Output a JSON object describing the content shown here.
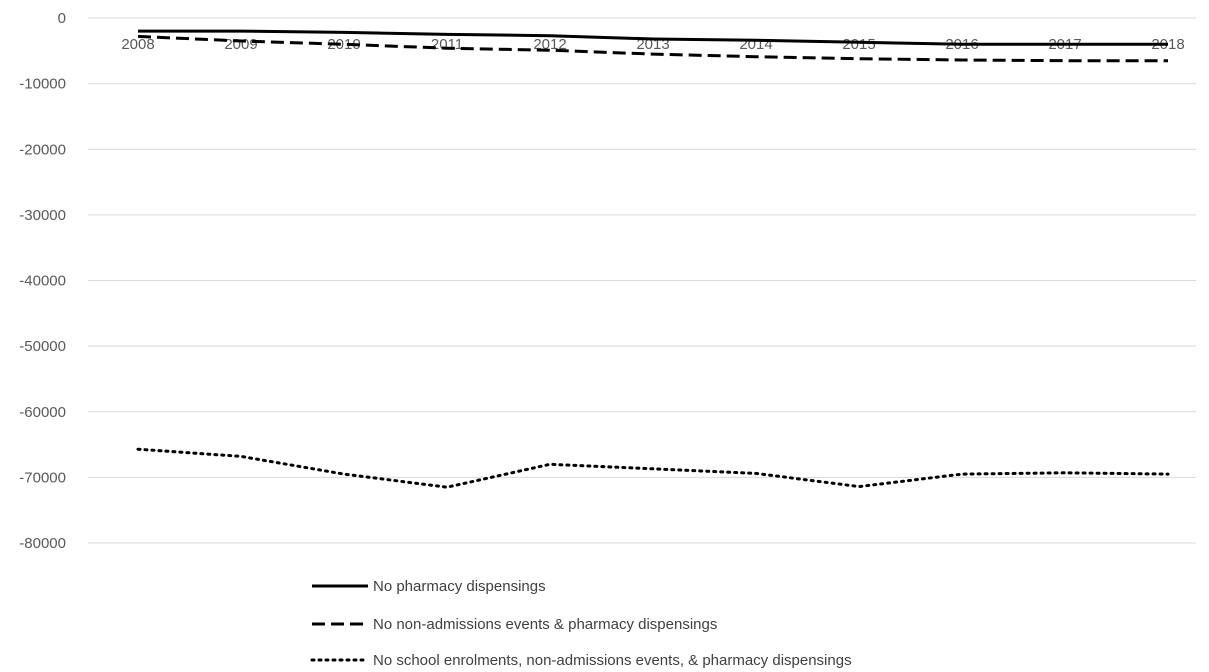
{
  "chart_data": {
    "type": "line",
    "title": "",
    "xlabel": "",
    "ylabel": "",
    "x": [
      "2008",
      "2009",
      "2010",
      "2011",
      "2012",
      "2013",
      "2014",
      "2015",
      "2016",
      "2017",
      "2018"
    ],
    "ylim": [
      -80000,
      0
    ],
    "yticks": [
      0,
      -10000,
      -20000,
      -30000,
      -40000,
      -50000,
      -60000,
      -70000,
      -80000
    ],
    "ytick_labels": [
      "0",
      "-10000",
      "-20000",
      "-30000",
      "-40000",
      "-50000",
      "-60000",
      "-70000",
      "-80000"
    ],
    "grid": "horizontal",
    "legend_position": "bottom",
    "series": [
      {
        "name": "No pharmacy dispensings",
        "line_style": "solid",
        "color": "#000000",
        "values": [
          -2000,
          -2000,
          -2200,
          -2500,
          -2700,
          -3200,
          -3400,
          -3700,
          -4000,
          -4000,
          -4000
        ]
      },
      {
        "name": "No non-admissions events & pharmacy dispensings",
        "line_style": "dashed",
        "color": "#000000",
        "values": [
          -2800,
          -3500,
          -4000,
          -4600,
          -4900,
          -5500,
          -5900,
          -6200,
          -6400,
          -6500,
          -6500
        ]
      },
      {
        "name": "No school enrolments, non-admissions events, & pharmacy dispensings",
        "line_style": "dotted",
        "color": "#000000",
        "values": [
          -65700,
          -66800,
          -69500,
          -71500,
          -68000,
          -68700,
          -69400,
          -71400,
          -69500,
          -69300,
          -69500
        ]
      }
    ]
  }
}
